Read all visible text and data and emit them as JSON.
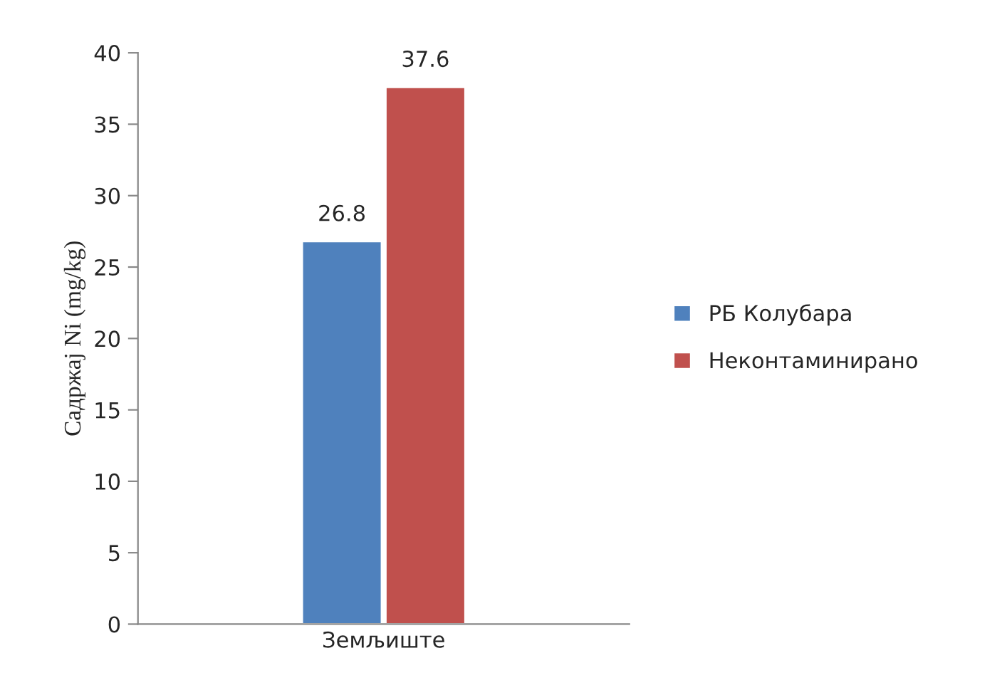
{
  "chart_data": {
    "type": "bar",
    "ylabel": "Садржај Ni (mg/kg)",
    "categories": [
      "Земљиште"
    ],
    "series": [
      {
        "name": "РБ Колубара",
        "color": "#4f81bd",
        "values": [
          26.8
        ]
      },
      {
        "name": "Неконтаминирано",
        "color": "#c0504d",
        "values": [
          37.6
        ]
      }
    ],
    "ylim": [
      0,
      40
    ],
    "yticks": [
      0,
      5,
      10,
      15,
      20,
      25,
      30,
      35,
      40
    ],
    "data_labels": true,
    "legend": "right",
    "grid": false
  }
}
